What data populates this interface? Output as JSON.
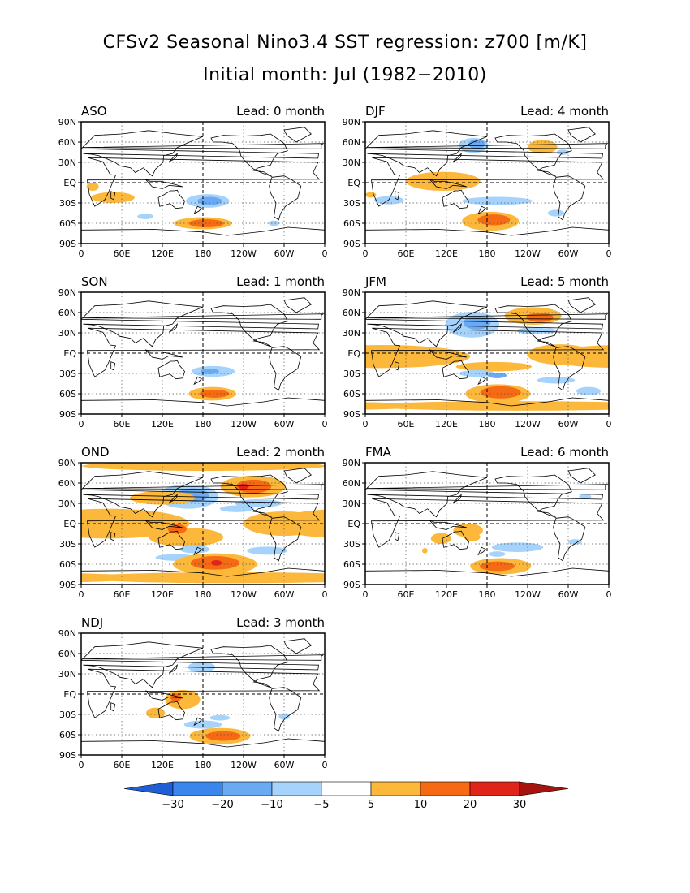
{
  "title": "CFSv2 Seasonal Nino3.4 SST regression: z700 [m/K]",
  "subtitle": "Initial month: Jul (1982−2010)",
  "axes": {
    "y_ticks": [
      "90N",
      "60N",
      "30N",
      "EQ",
      "30S",
      "60S",
      "90S"
    ],
    "x_ticks": [
      "0",
      "60E",
      "120E",
      "180",
      "120W",
      "60W",
      "0"
    ]
  },
  "panels": [
    {
      "season": "ASO",
      "lead": "Lead: 0 month"
    },
    {
      "season": "DJF",
      "lead": "Lead: 4 month"
    },
    {
      "season": "SON",
      "lead": "Lead: 1 month"
    },
    {
      "season": "JFM",
      "lead": "Lead: 5 month"
    },
    {
      "season": "OND",
      "lead": "Lead: 2 month"
    },
    {
      "season": "FMA",
      "lead": "Lead: 6 month"
    },
    {
      "season": "NDJ",
      "lead": "Lead: 3 month"
    }
  ],
  "colorbar": {
    "labels": [
      "−30",
      "−20",
      "−10",
      "−5",
      "5",
      "10",
      "20",
      "30"
    ],
    "colors": [
      "#1e5fd6",
      "#3a86ec",
      "#6aaaf3",
      "#a6d3fb",
      "#ffffff",
      "#fbb83a",
      "#f76a14",
      "#e0241a",
      "#a5150d"
    ]
  }
}
